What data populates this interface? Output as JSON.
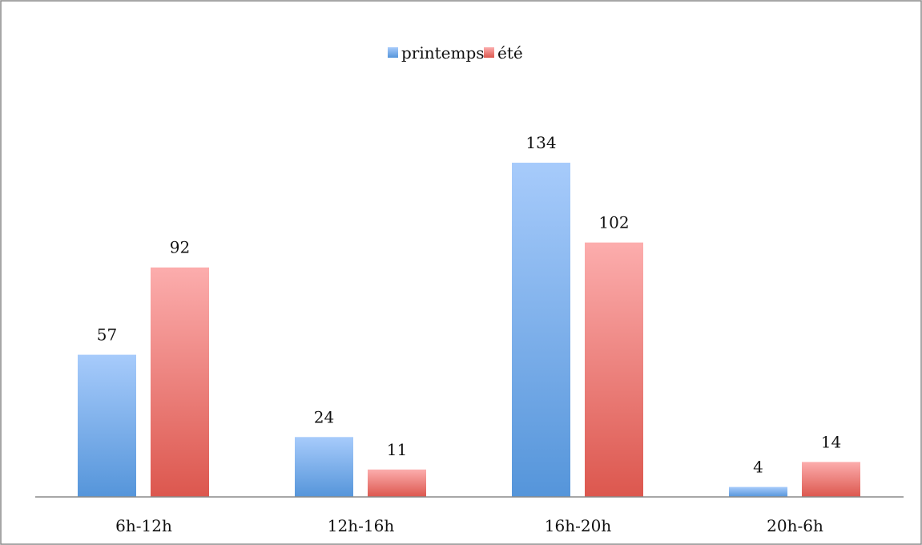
{
  "chart_data": {
    "type": "bar",
    "categories": [
      "6h-12h",
      "12h-16h",
      "16h-20h",
      "20h-6h"
    ],
    "series": [
      {
        "name": "printemps",
        "values": [
          57,
          24,
          134,
          4
        ],
        "color_top": "#a7cbfb",
        "color_bottom": "#5595da"
      },
      {
        "name": "été",
        "values": [
          92,
          11,
          102,
          14
        ],
        "color_top": "#fcadad",
        "color_bottom": "#dc574e"
      }
    ],
    "title": "",
    "xlabel": "",
    "ylabel": "",
    "ylim": [
      0,
      150
    ],
    "grid": false,
    "legend_position": "top-center",
    "data_labels": true
  }
}
